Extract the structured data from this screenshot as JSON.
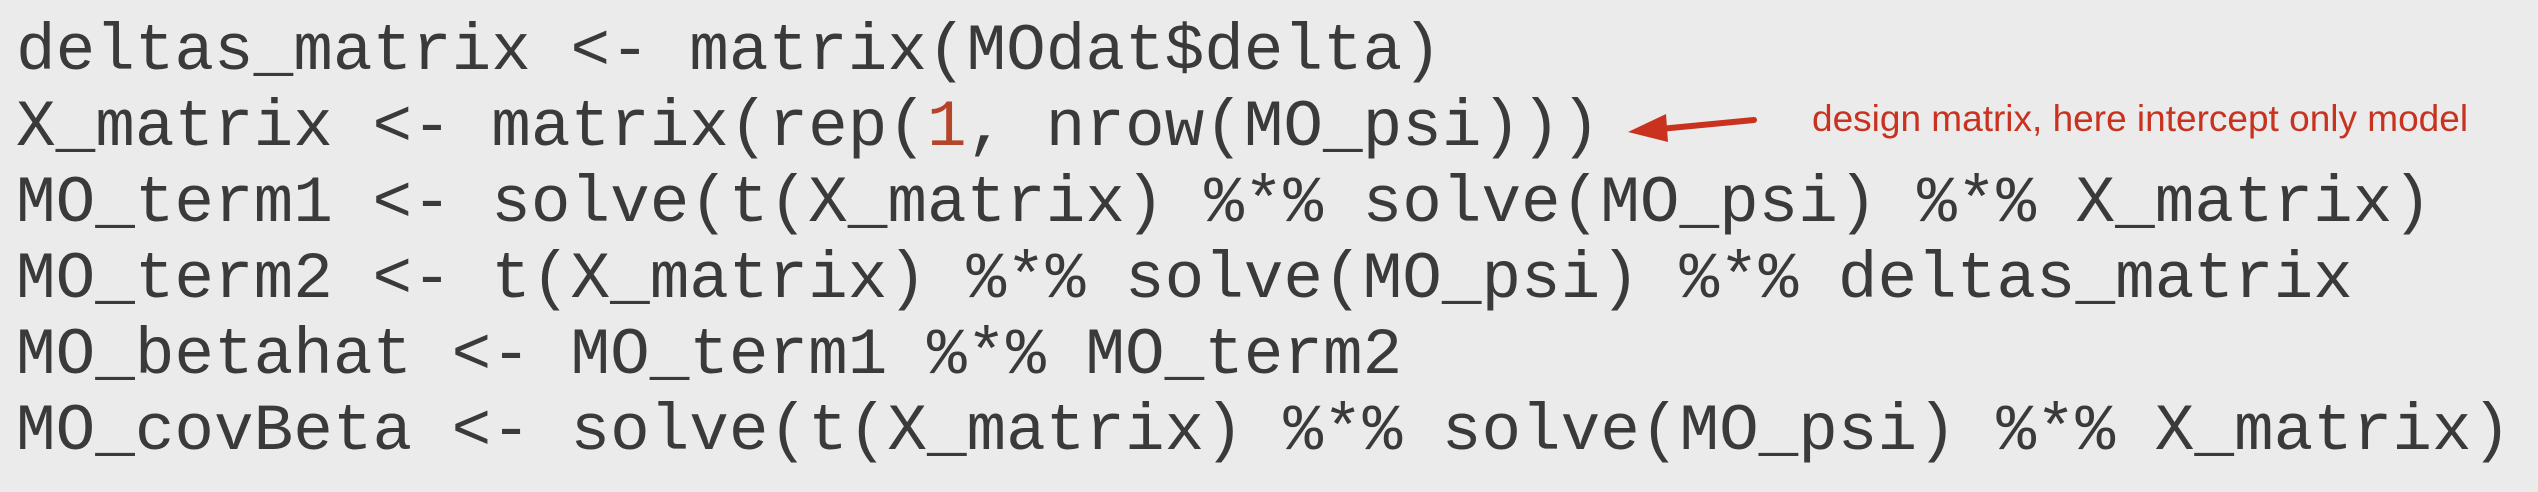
{
  "code": {
    "lines": [
      "deltas_matrix <- matrix(MOdat$delta)",
      "X_matrix <- matrix(rep(1, nrow(MO_psi)))",
      "MO_term1 <- solve(t(X_matrix) %*% solve(MO_psi) %*% X_matrix)",
      "MO_term2 <- t(X_matrix) %*% solve(MO_psi) %*% deltas_matrix",
      "MO_betahat <- MO_term1 %*% MO_term2",
      "MO_covBeta <- solve(t(X_matrix) %*% solve(MO_psi) %*% X_matrix)"
    ],
    "line2_parts": {
      "before": "X_matrix <- matrix(rep(",
      "number": "1",
      "after": ", nrow(MO_psi)))"
    }
  },
  "annotation": {
    "text": "design matrix, here intercept only model",
    "color": "#c8321f"
  },
  "arrow": {
    "icon": "arrow-left-icon",
    "color": "#c8321f"
  }
}
